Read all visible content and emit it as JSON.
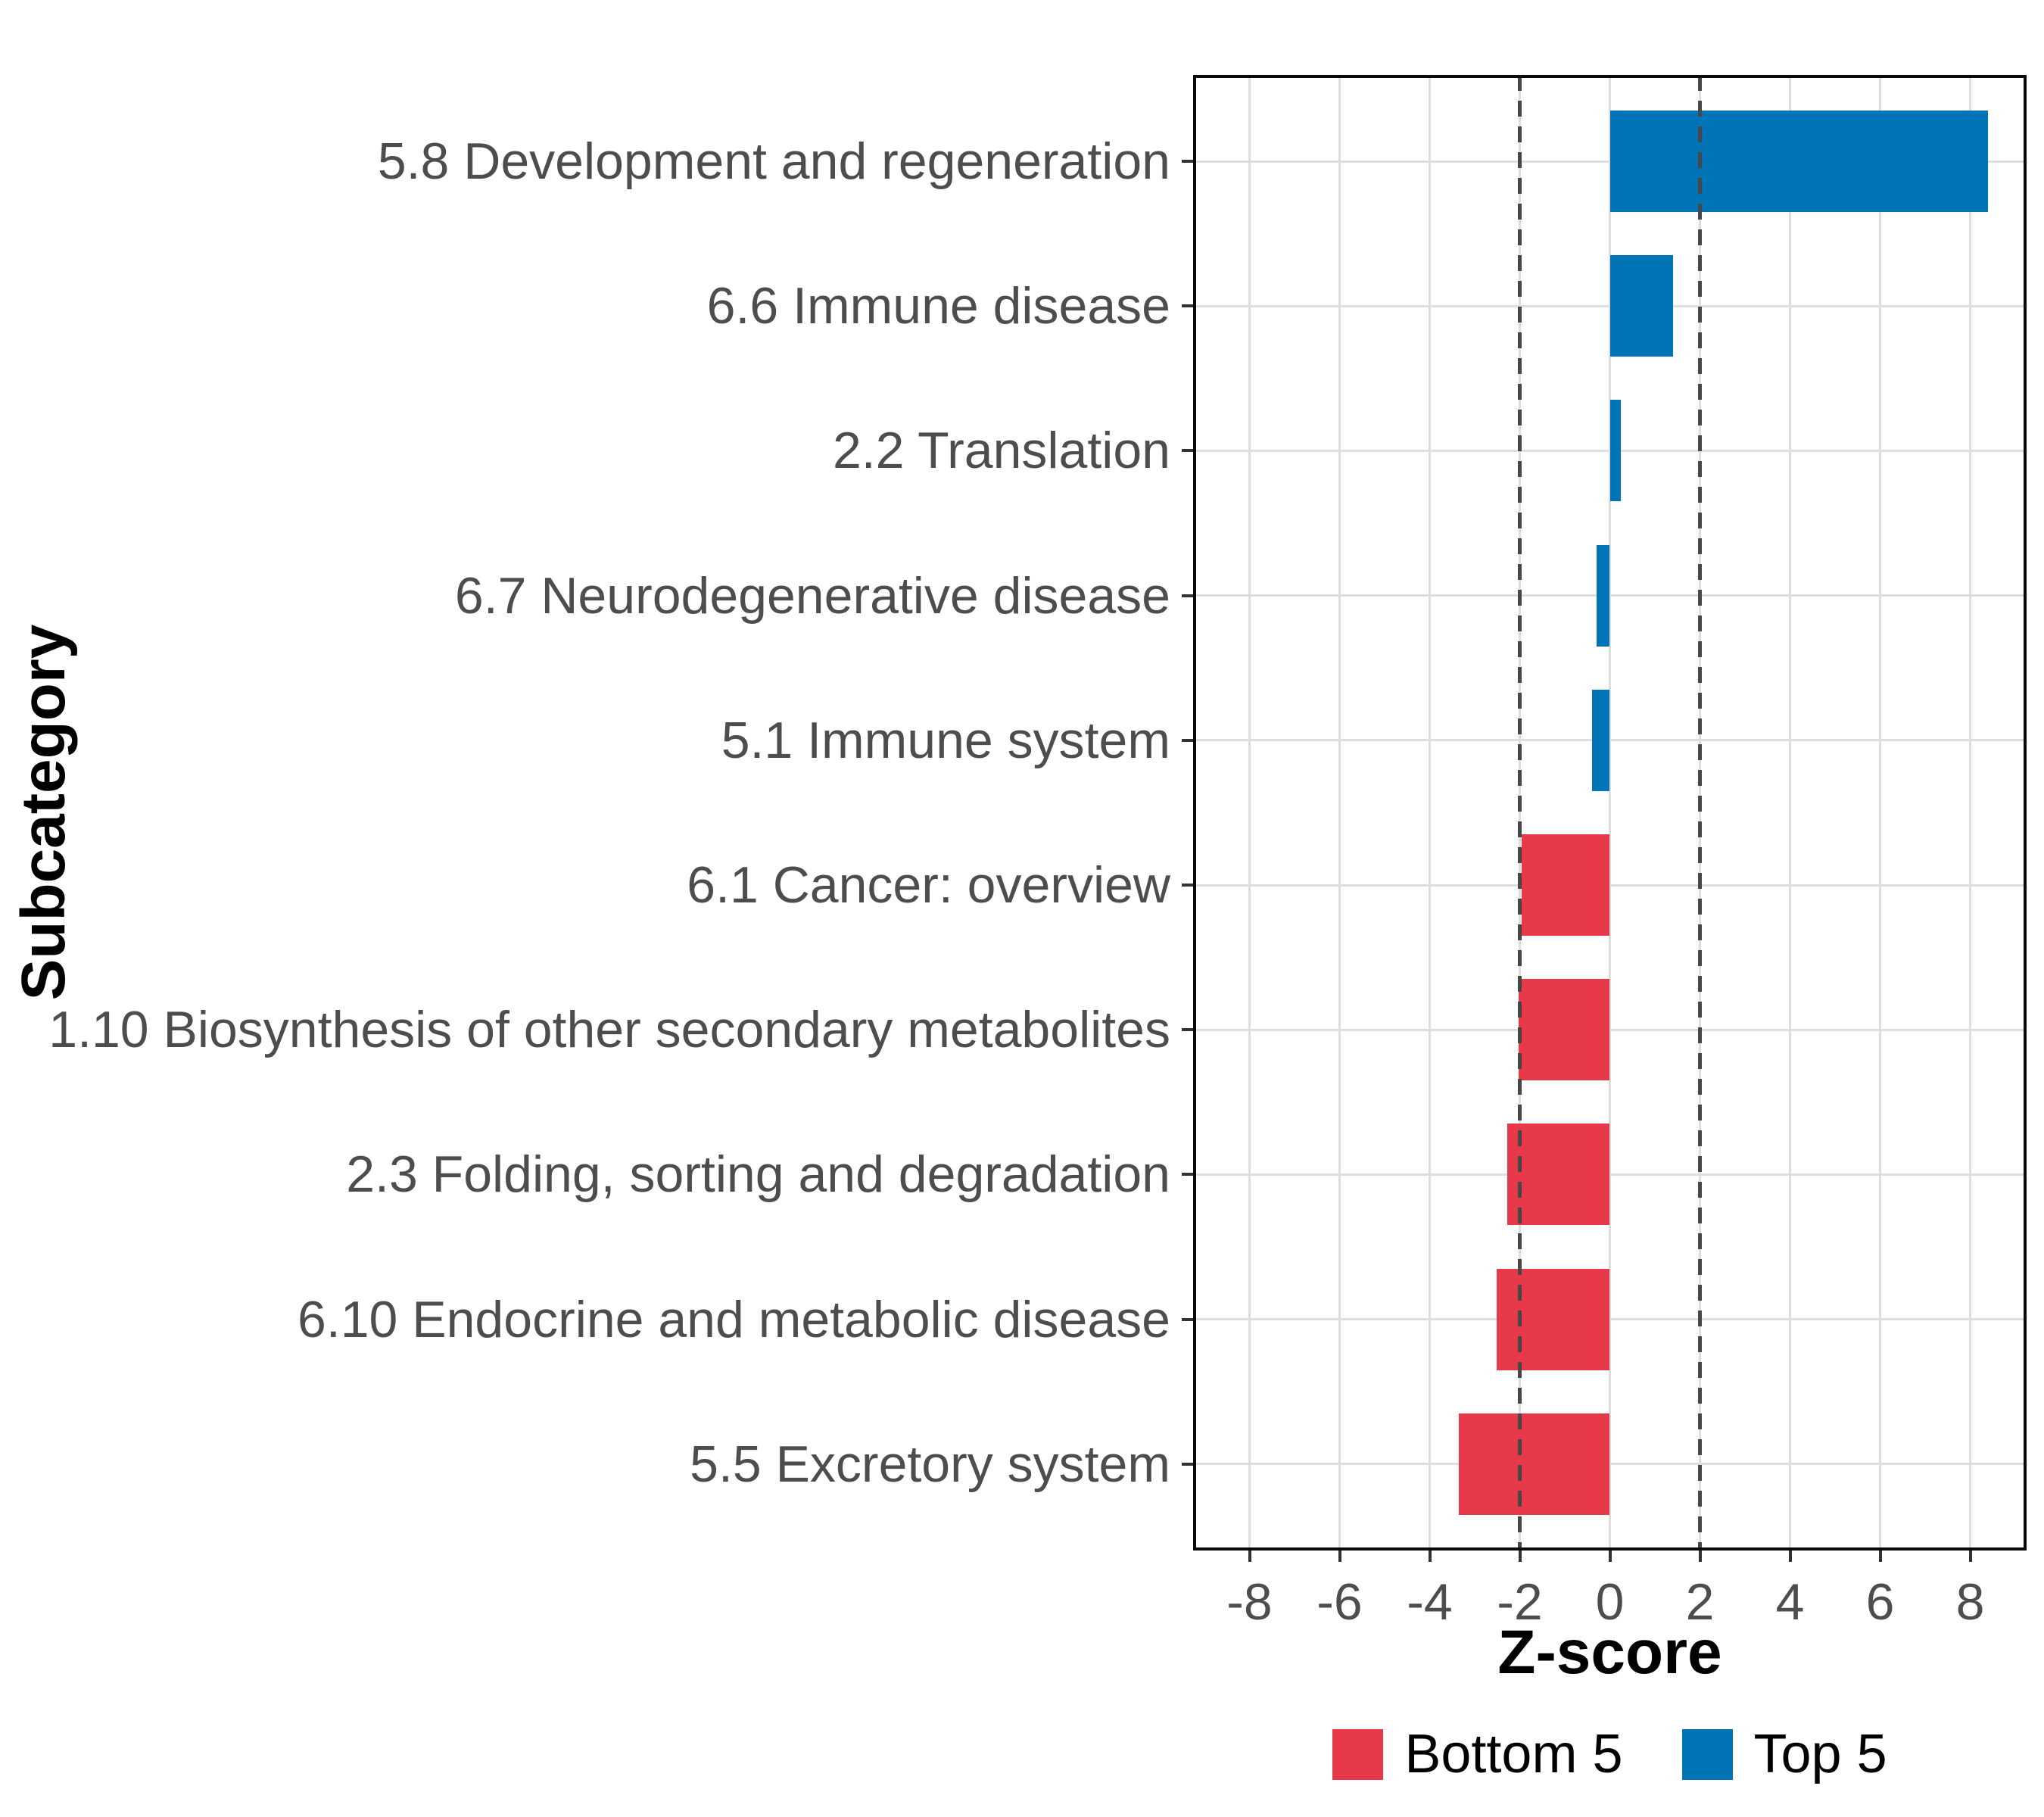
{
  "chart_data": {
    "type": "bar",
    "orientation": "horizontal",
    "xlabel": "Z-score",
    "ylabel": "Subcategory",
    "categories": [
      "5.8 Development and regeneration",
      "6.6 Immune disease",
      "2.2 Translation",
      "6.7 Neurodegenerative disease",
      "5.1 Immune system",
      "6.1 Cancer: overview",
      "1.10 Biosynthesis of other secondary metabolites",
      "2.3 Folding, sorting and degradation",
      "6.10 Endocrine and metabolic disease",
      "5.5 Excretory system"
    ],
    "values": [
      8.4,
      1.4,
      0.25,
      -0.3,
      -0.4,
      -1.96,
      -2.02,
      -2.27,
      -2.52,
      -3.36
    ],
    "groups": [
      "Top 5",
      "Top 5",
      "Top 5",
      "Top 5",
      "Top 5",
      "Bottom 5",
      "Bottom 5",
      "Bottom 5",
      "Bottom 5",
      "Bottom 5"
    ],
    "x_ticks": [
      -8,
      -6,
      -4,
      -2,
      0,
      2,
      4,
      6,
      8
    ],
    "xlim": [
      -9.25,
      9.25
    ],
    "reference_lines": [
      -2,
      2
    ],
    "grid": "major-only",
    "legend_position": "bottom",
    "legend": [
      {
        "label": "Bottom 5",
        "color": "#E8394A"
      },
      {
        "label": "Top 5",
        "color": "#0074B7"
      }
    ],
    "style_colors": {
      "grid": "#DEDEDE",
      "panel_border": "#0A0A0A",
      "reference_line": "#474747",
      "tick_mark": "#333333",
      "tick_label": "#4D4D4D",
      "axis_title": "#000000"
    }
  }
}
